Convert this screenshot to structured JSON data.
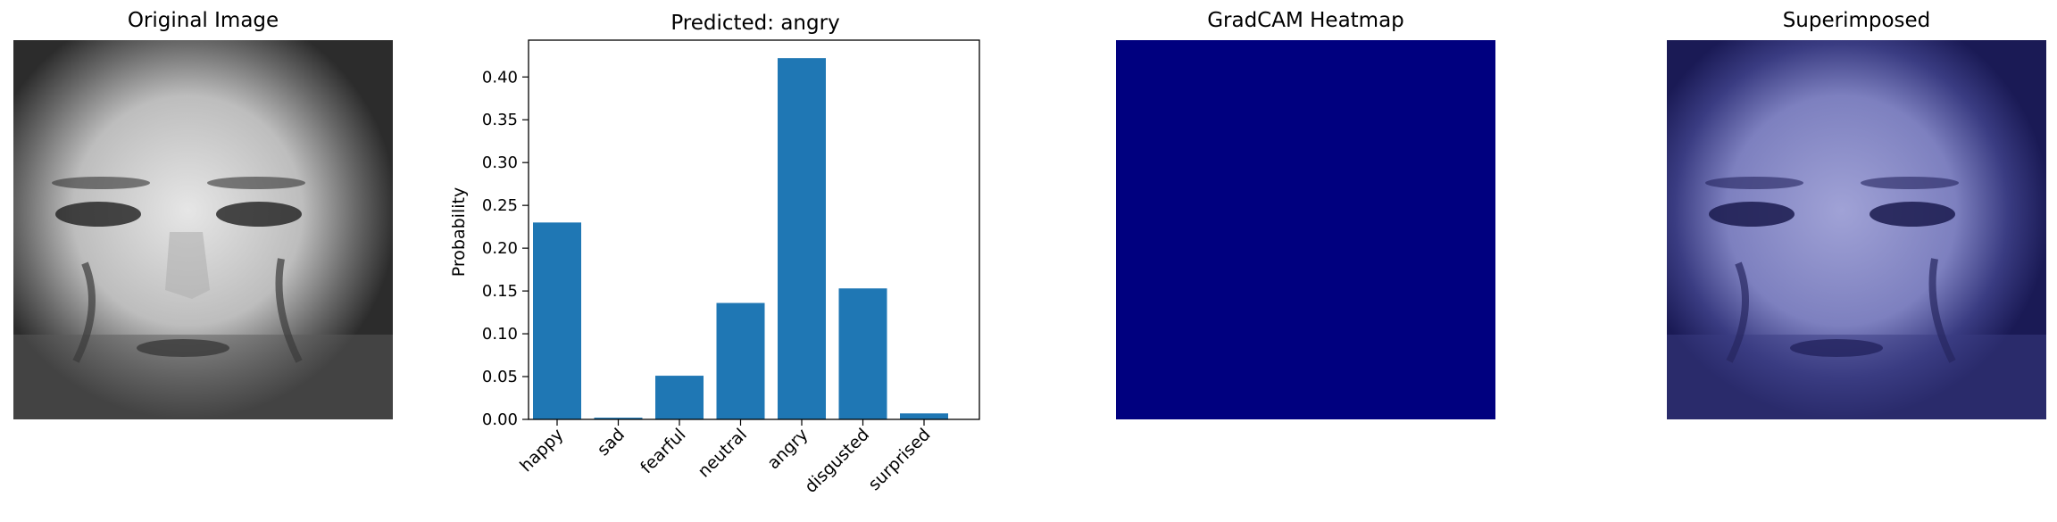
{
  "panels": {
    "original_title": "Original Image",
    "heatmap_title": "GradCAM Heatmap",
    "superimposed_title": "Superimposed"
  },
  "colors": {
    "bar": "#1f77b4",
    "heatmap": "#00007f",
    "overlay_tint": "#1a1a6e"
  },
  "chart_data": {
    "type": "bar",
    "title": "Predicted: angry",
    "xlabel": "",
    "ylabel": "Probability",
    "categories": [
      "happy",
      "sad",
      "fearful",
      "neutral",
      "angry",
      "disgusted",
      "surprised"
    ],
    "values": [
      0.23,
      0.002,
      0.051,
      0.136,
      0.422,
      0.153,
      0.007
    ],
    "ylim": [
      0,
      0.443
    ],
    "yticks": [
      "0.00",
      "0.05",
      "0.10",
      "0.15",
      "0.20",
      "0.25",
      "0.30",
      "0.35",
      "0.40"
    ],
    "grid": false,
    "legend": "none"
  }
}
